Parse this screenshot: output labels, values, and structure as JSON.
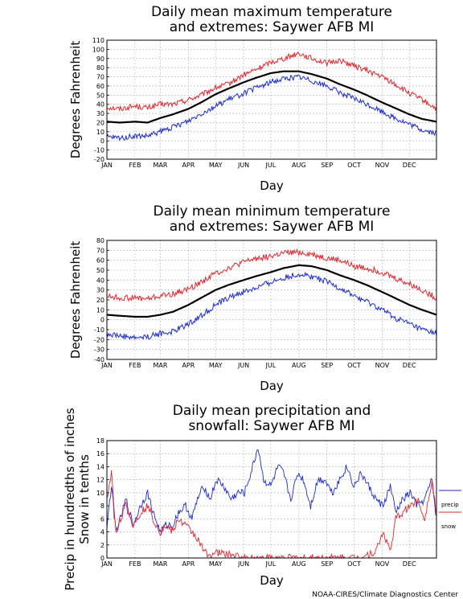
{
  "credit": "NOAA-CIRES/Climate Diagnostics Center",
  "chart_data": [
    {
      "type": "line",
      "title_lines": [
        "Daily mean maximum temperature",
        "and extremes: Saywer AFB MI"
      ],
      "xlabel": "Day",
      "ylabel": "Degrees Fahrenheit",
      "x_tick_labels": [
        "JAN",
        "FEB",
        "MAR",
        "APR",
        "MAY",
        "JUN",
        "JUL",
        "AUG",
        "SEP",
        "OCT",
        "NOV",
        "DEC"
      ],
      "ylim": [
        -20,
        110
      ],
      "y_ticks": [
        -20,
        -10,
        0,
        10,
        20,
        30,
        40,
        50,
        60,
        70,
        80,
        90,
        100,
        110
      ],
      "grid": true,
      "x_days": [
        1,
        15,
        32,
        46,
        60,
        74,
        91,
        105,
        121,
        135,
        152,
        166,
        182,
        196,
        213,
        227,
        244,
        258,
        274,
        288,
        305,
        319,
        335,
        349,
        365
      ],
      "series": [
        {
          "role": "high",
          "color": "#e8232b",
          "values": [
            37,
            35,
            38,
            36,
            40,
            40,
            45,
            50,
            58,
            62,
            72,
            78,
            86,
            90,
            96,
            90,
            85,
            88,
            82,
            77,
            70,
            62,
            52,
            45,
            35
          ]
        },
        {
          "role": "mean",
          "color": "#000000",
          "values": [
            21,
            20,
            21,
            20,
            25,
            29,
            35,
            42,
            51,
            57,
            64,
            69,
            74,
            76,
            76,
            73,
            68,
            62,
            56,
            50,
            42,
            36,
            29,
            24,
            21
          ]
        },
        {
          "role": "low",
          "color": "#1a2bd8",
          "values": [
            4,
            3,
            5,
            5,
            10,
            15,
            22,
            30,
            38,
            45,
            52,
            58,
            64,
            68,
            70,
            66,
            60,
            53,
            46,
            40,
            32,
            25,
            18,
            12,
            8
          ]
        }
      ]
    },
    {
      "type": "line",
      "title_lines": [
        "Daily mean minimum temperature",
        "and extremes: Saywer AFB MI"
      ],
      "xlabel": "Day",
      "ylabel": "Degrees Fahrenheit",
      "x_tick_labels": [
        "JAN",
        "FEB",
        "MAR",
        "APR",
        "MAY",
        "JUN",
        "JUL",
        "AUG",
        "SEP",
        "OCT",
        "NOV",
        "DEC"
      ],
      "ylim": [
        -40,
        80
      ],
      "y_ticks": [
        -40,
        -30,
        -20,
        -10,
        0,
        10,
        20,
        30,
        40,
        50,
        60,
        70,
        80
      ],
      "grid": true,
      "x_days": [
        1,
        15,
        32,
        46,
        60,
        74,
        91,
        105,
        121,
        135,
        152,
        166,
        182,
        196,
        213,
        227,
        244,
        258,
        274,
        288,
        305,
        319,
        335,
        349,
        365
      ],
      "series": [
        {
          "role": "high",
          "color": "#e8232b",
          "values": [
            24,
            22,
            22,
            21,
            24,
            26,
            31,
            38,
            47,
            52,
            58,
            62,
            64,
            67,
            68,
            66,
            62,
            60,
            54,
            52,
            48,
            42,
            36,
            30,
            22
          ]
        },
        {
          "role": "mean",
          "color": "#000000",
          "values": [
            5,
            4,
            3,
            3,
            5,
            8,
            15,
            22,
            30,
            35,
            40,
            44,
            48,
            52,
            55,
            54,
            50,
            45,
            40,
            35,
            28,
            22,
            15,
            10,
            5
          ]
        },
        {
          "role": "low",
          "color": "#1a2bd8",
          "values": [
            -14,
            -16,
            -18,
            -17,
            -14,
            -12,
            -4,
            4,
            15,
            22,
            28,
            32,
            38,
            42,
            46,
            44,
            38,
            32,
            24,
            18,
            10,
            2,
            -4,
            -10,
            -14
          ]
        }
      ]
    },
    {
      "type": "line",
      "title_lines": [
        "Daily mean precipitation and",
        "snowfall: Saywer AFB MI"
      ],
      "xlabel": "Day",
      "ylabel_lines": [
        "Precip in hundredths of inches",
        "Snow in tenths"
      ],
      "x_tick_labels": [
        "JAN",
        "FEB",
        "MAR",
        "APR",
        "MAY",
        "JUN",
        "JUL",
        "AUG",
        "SEP",
        "OCT",
        "NOV",
        "DEC"
      ],
      "ylim": [
        0,
        18
      ],
      "y_ticks": [
        0,
        2,
        4,
        6,
        8,
        10,
        12,
        14,
        16,
        18
      ],
      "grid": true,
      "x_days": [
        1,
        6,
        11,
        16,
        22,
        30,
        38,
        46,
        52,
        60,
        66,
        74,
        80,
        88,
        95,
        101,
        108,
        115,
        122,
        130,
        138,
        146,
        153,
        160,
        168,
        174,
        182,
        190,
        196,
        204,
        212,
        218,
        226,
        234,
        242,
        250,
        258,
        266,
        274,
        282,
        290,
        298,
        306,
        314,
        320,
        328,
        336,
        344,
        352,
        360,
        365
      ],
      "series": [
        {
          "name": "precip",
          "color": "#1a2bd8",
          "values": [
            5,
            11,
            4,
            6,
            9,
            5,
            8,
            10,
            7,
            4,
            5,
            5,
            7,
            8,
            6,
            9,
            11,
            9,
            12,
            11,
            9,
            10,
            10,
            13,
            17,
            12,
            11,
            14,
            13,
            9,
            13,
            12,
            8,
            12,
            12,
            10,
            12,
            14,
            11,
            13,
            11,
            9,
            8,
            11,
            7,
            9,
            10,
            8,
            9,
            12,
            6
          ]
        },
        {
          "name": "snow",
          "color": "#e8232b",
          "values": [
            9,
            13,
            4,
            6,
            8,
            5,
            7,
            8,
            6,
            4,
            5,
            4,
            6,
            5,
            4,
            3,
            1,
            0.5,
            0.8,
            0.7,
            0.5,
            0.2,
            0,
            0,
            0,
            0,
            0,
            0,
            0,
            0,
            0,
            0,
            0,
            0,
            0,
            0,
            0,
            0,
            0,
            0.2,
            0.6,
            1,
            4,
            1,
            6,
            7,
            8,
            9,
            6,
            12,
            7
          ]
        }
      ]
    }
  ]
}
